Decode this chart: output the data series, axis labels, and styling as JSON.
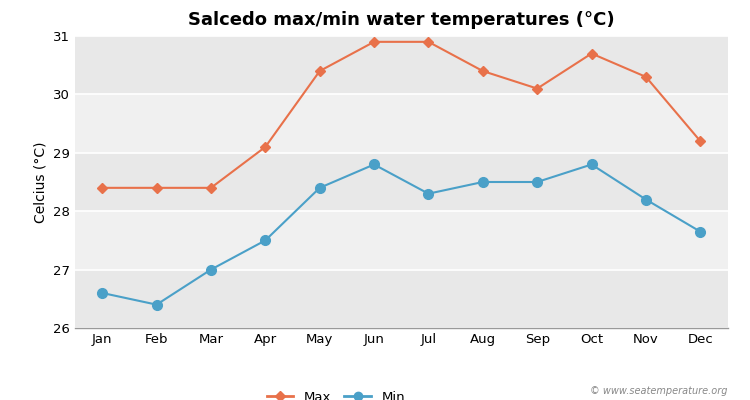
{
  "title": "Salcedo max/min water temperatures (°C)",
  "ylabel": "Celcius (°C)",
  "months": [
    "Jan",
    "Feb",
    "Mar",
    "Apr",
    "May",
    "Jun",
    "Jul",
    "Aug",
    "Sep",
    "Oct",
    "Nov",
    "Dec"
  ],
  "max_values": [
    28.4,
    28.4,
    28.4,
    29.1,
    30.4,
    30.9,
    30.9,
    30.4,
    30.1,
    30.7,
    30.3,
    29.2
  ],
  "min_values": [
    26.6,
    26.4,
    27.0,
    27.5,
    28.4,
    28.8,
    28.3,
    28.5,
    28.5,
    28.8,
    28.2,
    27.65
  ],
  "max_color": "#e8714a",
  "min_color": "#4aa0c8",
  "ylim": [
    26,
    31
  ],
  "yticks": [
    26,
    27,
    28,
    29,
    30,
    31
  ],
  "background_color": "#ffffff",
  "plot_bg_color": "#e8e8e8",
  "band_colors_odd": "#e8e8e8",
  "band_colors_even": "#f0f0f0",
  "title_fontsize": 13,
  "axis_fontsize": 10,
  "tick_fontsize": 9.5,
  "watermark": "© www.seatemperature.org"
}
